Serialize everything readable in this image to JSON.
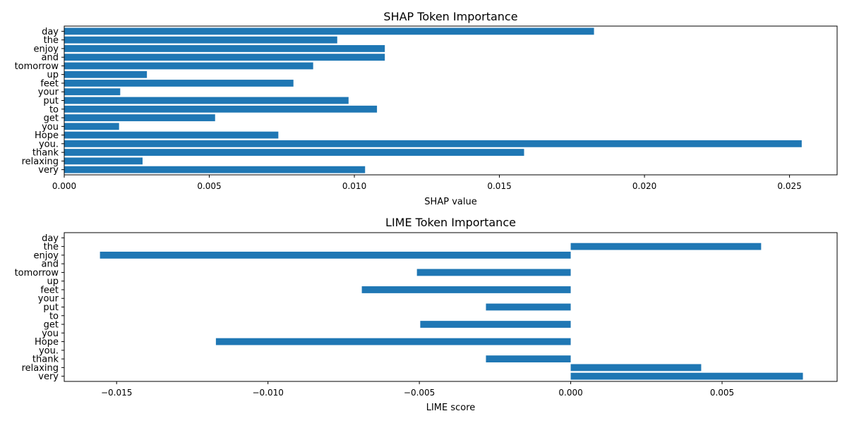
{
  "chart_data": [
    {
      "type": "bar",
      "orientation": "horizontal",
      "title": "SHAP Token Importance",
      "xlabel": "SHAP value",
      "ylabel": "",
      "color": "#1f77b4",
      "xlim": [
        0,
        0.02664
      ],
      "xticks": [
        0.0,
        0.005,
        0.01,
        0.015,
        0.02,
        0.025
      ],
      "xtick_labels": [
        "0.000",
        "0.005",
        "0.010",
        "0.015",
        "0.020",
        "0.025"
      ],
      "categories": [
        "day",
        "the",
        "enjoy",
        "and",
        "tomorrow",
        "up",
        "feet",
        "your",
        "put",
        "to",
        "get",
        "you",
        "Hope",
        "you.",
        "thank",
        "relaxing",
        "very"
      ],
      "values": [
        0.01826,
        0.00941,
        0.01105,
        0.01105,
        0.00858,
        0.00285,
        0.0079,
        0.00193,
        0.0098,
        0.01078,
        0.0052,
        0.00189,
        0.00738,
        0.02542,
        0.01585,
        0.0027,
        0.01037
      ],
      "grid": false,
      "legend": "none"
    },
    {
      "type": "bar",
      "orientation": "horizontal",
      "title": "LIME Token Importance",
      "xlabel": "LIME score",
      "ylabel": "",
      "color": "#1f77b4",
      "xlim": [
        -0.01673,
        0.0088
      ],
      "xticks": [
        -0.015,
        -0.01,
        -0.005,
        0.0,
        0.005
      ],
      "xtick_labels": [
        "−0.015",
        "−0.010",
        "−0.005",
        "0.000",
        "0.005"
      ],
      "categories": [
        "day",
        "the",
        "enjoy",
        "and",
        "tomorrow",
        "up",
        "feet",
        "your",
        "put",
        "to",
        "get",
        "you",
        "Hope",
        "you.",
        "thank",
        "relaxing",
        "very"
      ],
      "values": [
        0.0,
        0.00629,
        -0.01555,
        0.0,
        -0.00508,
        0.0,
        -0.0069,
        0.0,
        -0.0028,
        0.0,
        -0.00497,
        0.0,
        -0.01172,
        0.0,
        -0.0028,
        0.00431,
        0.00767
      ],
      "grid": false,
      "legend": "none"
    }
  ]
}
